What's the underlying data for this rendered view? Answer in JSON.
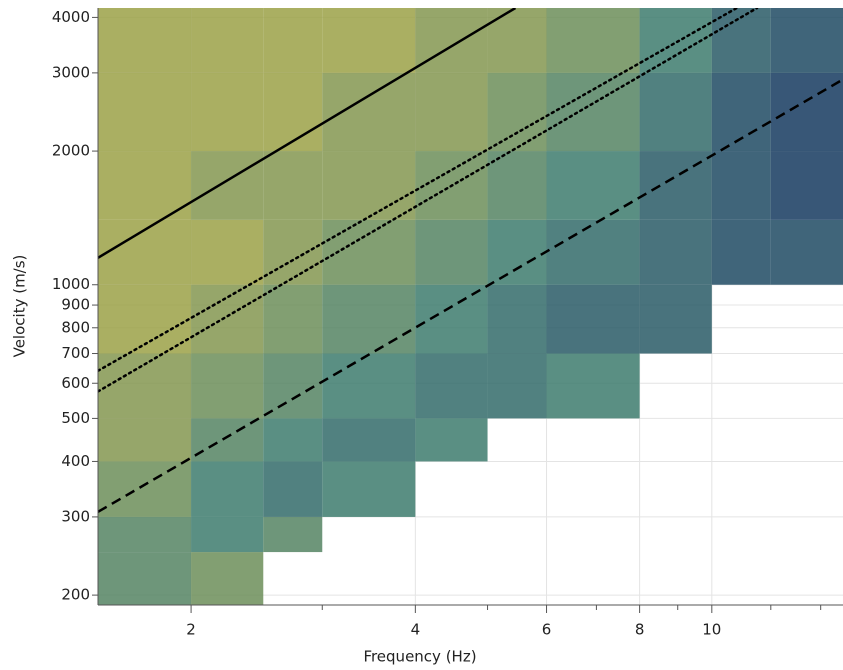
{
  "chart_data": {
    "type": "heatmap",
    "x_label": "Frequency (Hz)",
    "y_label": "Velocity (m/s)",
    "x_scale": "log",
    "y_scale": "log",
    "xlim": [
      1.5,
      15
    ],
    "ylim": [
      190,
      4200
    ],
    "xticks": [
      2,
      4,
      6,
      8,
      10
    ],
    "x_minor_ticks": [
      3,
      5,
      7,
      9,
      12,
      14
    ],
    "yticks": [
      200,
      300,
      400,
      500,
      600,
      700,
      800,
      900,
      1000,
      2000,
      3000,
      4000
    ],
    "grid": true,
    "x_bins": [
      1.5,
      2,
      2.5,
      3,
      4,
      5,
      6,
      8,
      10,
      12,
      15
    ],
    "y_bins": [
      190,
      250,
      300,
      400,
      500,
      700,
      1000,
      1400,
      2000,
      3000,
      4200
    ],
    "z": [
      [
        4,
        3,
        0,
        0,
        0,
        0,
        0,
        0,
        0,
        0
      ],
      [
        4,
        5,
        4,
        0,
        0,
        0,
        0,
        0,
        0,
        0
      ],
      [
        3,
        5,
        6,
        5,
        0,
        0,
        0,
        0,
        0,
        0
      ],
      [
        2,
        4,
        5,
        6,
        5,
        0,
        0,
        0,
        0,
        0
      ],
      [
        2,
        3,
        4,
        5,
        6,
        6,
        5,
        0,
        0,
        0
      ],
      [
        1,
        2,
        3,
        4,
        5,
        6,
        7,
        7,
        0,
        0
      ],
      [
        1,
        1,
        2,
        3,
        4,
        5,
        6,
        7,
        8,
        8
      ],
      [
        1,
        2,
        2,
        2,
        3,
        4,
        5,
        7,
        8,
        9
      ],
      [
        1,
        1,
        1,
        2,
        2,
        3,
        4,
        6,
        8,
        9
      ],
      [
        1,
        1,
        1,
        1,
        2,
        2,
        3,
        5,
        7,
        8
      ]
    ],
    "zlim": [
      0,
      10
    ],
    "colorscale": [
      "#b3aa3c",
      "#3d7b6d",
      "#0b2a5c"
    ],
    "lines": [
      {
        "x": [
          1.5,
          5.45
        ],
        "values": [
          1150,
          4200
        ],
        "style": "solid",
        "color": "#000000"
      },
      {
        "x": [
          1.5,
          10.8
        ],
        "values": [
          640,
          4200
        ],
        "style": "dotted",
        "color": "#000000"
      },
      {
        "x": [
          1.5,
          11.5
        ],
        "values": [
          575,
          4200
        ],
        "style": "dotted",
        "color": "#000000"
      },
      {
        "x": [
          1.5,
          15
        ],
        "values": [
          308,
          2900
        ],
        "style": "dashed",
        "color": "#000000"
      }
    ]
  }
}
